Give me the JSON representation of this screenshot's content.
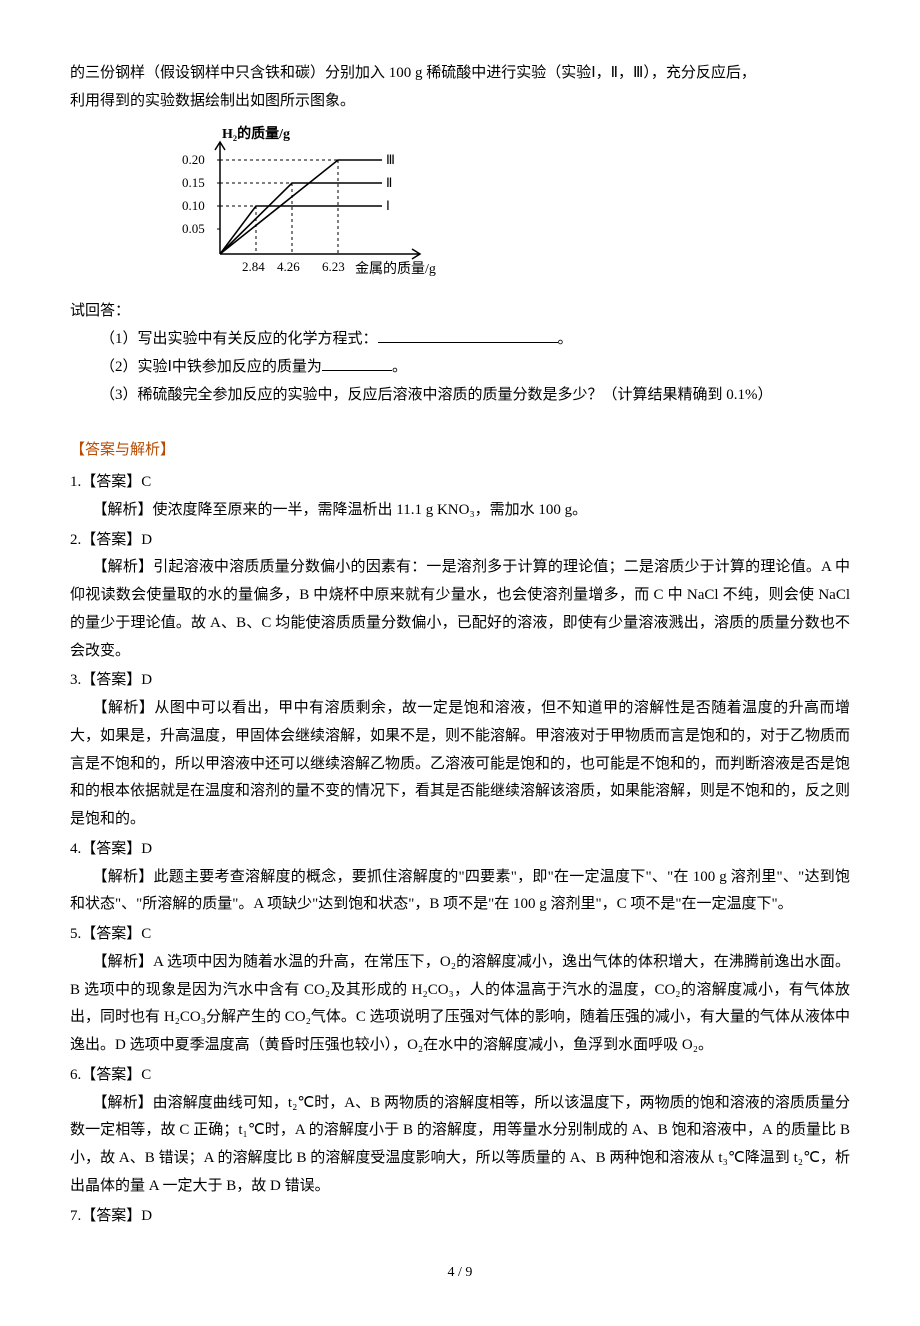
{
  "intro": {
    "line1": "的三份钢样（假设钢样中只含铁和碳）分别加入 100 g 稀硫酸中进行实验（实验Ⅰ，Ⅱ，Ⅲ），充分反应后，",
    "line2": "利用得到的实验数据绘制出如图所示图象。"
  },
  "chart": {
    "y_label": "H₂的质量/g",
    "x_label": "金属的质量/g",
    "y_ticks": [
      "0.05",
      "0.10",
      "0.15",
      "0.20"
    ],
    "x_ticks": [
      "2.84",
      "4.26",
      "6.23"
    ],
    "series_labels": [
      "Ⅲ",
      "Ⅱ",
      "Ⅰ"
    ],
    "axis_color": "#000000",
    "grid_color": "#000000",
    "line_color": "#000000",
    "font_size": 13,
    "label_font_size": 14
  },
  "questions": {
    "prefix": "试回答：",
    "q1_pre": "（1）写出实验中有关反应的化学方程式：",
    "q1_post": "。",
    "q2_pre": "（2）实验Ⅰ中铁参加反应的质量为",
    "q2_post": "。",
    "q3": "（3）稀硫酸完全参加反应的实验中，反应后溶液中溶质的质量分数是多少？（计算结果精确到 0.1%）"
  },
  "section_header": "【答案与解析】",
  "answers": [
    {
      "num": "1.",
      "ans": "【答案】C",
      "analysis": "【解析】使浓度降至原来的一半，需降温析出 11.1 g KNO₃，需加水 100 g。"
    },
    {
      "num": "2.",
      "ans": "【答案】D",
      "analysis": "【解析】引起溶液中溶质质量分数偏小的因素有：一是溶剂多于计算的理论值；二是溶质少于计算的理论值。A 中仰视读数会使量取的水的量偏多，B 中烧杯中原来就有少量水，也会使溶剂量增多，而 C 中 NaCl 不纯，则会使 NaCl 的量少于理论值。故 A、B、C 均能使溶质质量分数偏小，已配好的溶液，即使有少量溶液溅出，溶质的质量分数也不会改变。"
    },
    {
      "num": "3.",
      "ans": "【答案】D",
      "analysis": "【解析】从图中可以看出，甲中有溶质剩余，故一定是饱和溶液，但不知道甲的溶解性是否随着温度的升高而增大，如果是，升高温度，甲固体会继续溶解，如果不是，则不能溶解。甲溶液对于甲物质而言是饱和的，对于乙物质而言是不饱和的，所以甲溶液中还可以继续溶解乙物质。乙溶液可能是饱和的，也可能是不饱和的，而判断溶液是否是饱和的根本依据就是在温度和溶剂的量不变的情况下，看其是否能继续溶解该溶质，如果能溶解，则是不饱和的，反之则是饱和的。"
    },
    {
      "num": "4.",
      "ans": "【答案】D",
      "analysis": "【解析】此题主要考查溶解度的概念，要抓住溶解度的\"四要素\"，即\"在一定温度下\"、\"在 100 g 溶剂里\"、\"达到饱和状态\"、\"所溶解的质量\"。A 项缺少\"达到饱和状态\"，B 项不是\"在 100 g 溶剂里\"，C 项不是\"在一定温度下\"。"
    },
    {
      "num": "5.",
      "ans": "【答案】C",
      "analysis": "【解析】A 选项中因为随着水温的升高，在常压下，O₂的溶解度减小，逸出气体的体积增大，在沸腾前逸出水面。B 选项中的现象是因为汽水中含有 CO₂及其形成的 H₂CO₃，人的体温高于汽水的温度，CO₂的溶解度减小，有气体放出，同时也有 H₂CO₃分解产生的 CO₂气体。C 选项说明了压强对气体的影响，随着压强的减小，有大量的气体从液体中逸出。D 选项中夏季温度高（黄昏时压强也较小），O₂在水中的溶解度减小，鱼浮到水面呼吸 O₂。"
    },
    {
      "num": "6.",
      "ans": "【答案】C",
      "analysis": "【解析】由溶解度曲线可知，t₂℃时，A、B 两物质的溶解度相等，所以该温度下，两物质的饱和溶液的溶质质量分数一定相等，故 C 正确；t₁℃时，A 的溶解度小于 B 的溶解度，用等量水分别制成的 A、B 饱和溶液中，A 的质量比 B 小，故 A、B 错误；A 的溶解度比 B 的溶解度受温度影响大，所以等质量的 A、B 两种饱和溶液从 t₃℃降温到 t₂℃，析出晶体的量 A 一定大于 B，故 D 错误。"
    },
    {
      "num": "7.",
      "ans": "【答案】D",
      "analysis": ""
    }
  ],
  "page_number": "4 / 9"
}
